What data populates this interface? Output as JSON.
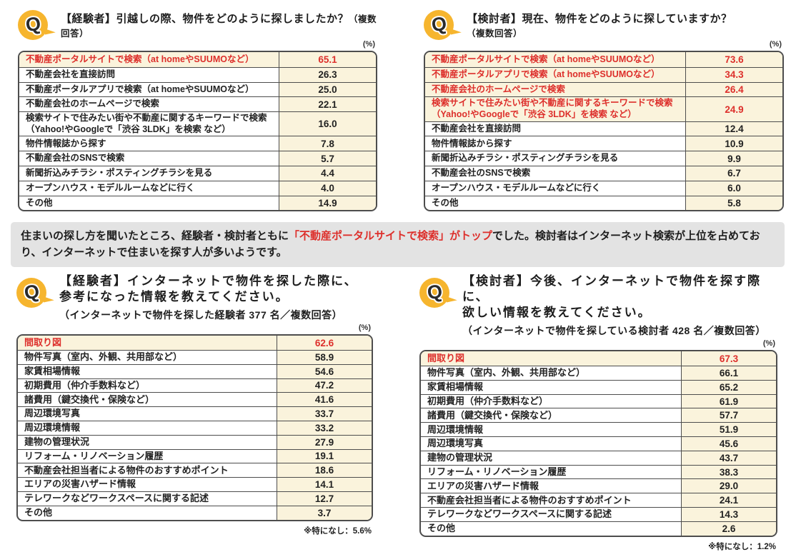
{
  "colors": {
    "accent_yellow": "#f6b52e",
    "accent_red": "#dd2f2b",
    "cream_bg": "#faf3dc",
    "summary_bg": "#e3e3e3",
    "table_border": "#4d4d4d"
  },
  "sections": [
    {
      "title": "【経験者】引越しの際、物件をどのように探しましたか？",
      "title_suffix": "（複数回答）",
      "unit": "(%)",
      "rows": [
        {
          "label": "不動産ポータルサイトで検索（at homeやSUUMOなど）",
          "value": "65.1",
          "highlight": true
        },
        {
          "label": "不動産会社を直接訪問",
          "value": "26.3",
          "highlight": false
        },
        {
          "label": "不動産ポータルアプリで検索（at homeやSUUMOなど）",
          "value": "25.0",
          "highlight": false
        },
        {
          "label": "不動産会社のホームページで検索",
          "value": "22.1",
          "highlight": false
        },
        {
          "label": "検索サイトで住みたい街や不動産に関するキーワードで検索\n（Yahoo!やGoogleで「渋谷 3LDK」を検索 など）",
          "value": "16.0",
          "highlight": false
        },
        {
          "label": "物件情報誌から探す",
          "value": "7.8",
          "highlight": false
        },
        {
          "label": "不動産会社のSNSで検索",
          "value": "5.7",
          "highlight": false
        },
        {
          "label": "新聞折込みチラシ・ポスティングチラシを見る",
          "value": "4.4",
          "highlight": false
        },
        {
          "label": "オープンハウス・モデルルームなどに行く",
          "value": "4.0",
          "highlight": false
        },
        {
          "label": "その他",
          "value": "14.9",
          "highlight": false
        }
      ]
    },
    {
      "title": "【検討者】現在、物件をどのように探していますか？",
      "title_suffix": "（複数回答）",
      "unit": "(%)",
      "rows": [
        {
          "label": "不動産ポータルサイトで検索（at homeやSUUMOなど）",
          "value": "73.6",
          "highlight": true
        },
        {
          "label": "不動産ポータルアプリで検索（at homeやSUUMOなど）",
          "value": "34.3",
          "highlight": true
        },
        {
          "label": "不動産会社のホームページで検索",
          "value": "26.4",
          "highlight": true
        },
        {
          "label": "検索サイトで住みたい街や不動産に関するキーワードで検索\n（Yahoo!やGoogleで「渋谷 3LDK」を検索 など）",
          "value": "24.9",
          "highlight": true
        },
        {
          "label": "不動産会社を直接訪問",
          "value": "12.4",
          "highlight": false
        },
        {
          "label": "物件情報誌から探す",
          "value": "10.9",
          "highlight": false
        },
        {
          "label": "新聞折込みチラシ・ポスティングチラシを見る",
          "value": "9.9",
          "highlight": false
        },
        {
          "label": "不動産会社のSNSで検索",
          "value": "6.7",
          "highlight": false
        },
        {
          "label": "オープンハウス・モデルルームなどに行く",
          "value": "6.0",
          "highlight": false
        },
        {
          "label": "その他",
          "value": "5.8",
          "highlight": false
        }
      ]
    },
    {
      "title_line1": "【経験者】インターネットで物件を探した際に、",
      "title_line2": "参考になった情報を教えてください。",
      "subtitle": "（インターネットで物件を探した経験者 377 名／複数回答）",
      "unit": "(%)",
      "footnote": "※特になし：5.6%",
      "rows": [
        {
          "label": "間取り図",
          "value": "62.6",
          "highlight": true
        },
        {
          "label": "物件写真（室内、外観、共用部など）",
          "value": "58.9",
          "highlight": false
        },
        {
          "label": "家賃相場情報",
          "value": "54.6",
          "highlight": false
        },
        {
          "label": "初期費用（仲介手数料など）",
          "value": "47.2",
          "highlight": false
        },
        {
          "label": "諸費用（鍵交換代・保険など）",
          "value": "41.6",
          "highlight": false
        },
        {
          "label": "周辺環境写真",
          "value": "33.7",
          "highlight": false
        },
        {
          "label": "周辺環境情報",
          "value": "33.2",
          "highlight": false
        },
        {
          "label": "建物の管理状況",
          "value": "27.9",
          "highlight": false
        },
        {
          "label": "リフォーム・リノベーション履歴",
          "value": "19.1",
          "highlight": false
        },
        {
          "label": "不動産会社担当者による物件のおすすめポイント",
          "value": "18.6",
          "highlight": false
        },
        {
          "label": "エリアの災害ハザード情報",
          "value": "14.1",
          "highlight": false
        },
        {
          "label": "テレワークなどワークスペースに関する記述",
          "value": "12.7",
          "highlight": false
        },
        {
          "label": "その他",
          "value": "3.7",
          "highlight": false
        }
      ]
    },
    {
      "title_line1": "【検討者】今後、インターネットで物件を探す際に、",
      "title_line2": "欲しい情報を教えてください。",
      "subtitle": "（インターネットで物件を探している検討者 428 名／複数回答）",
      "unit": "(%)",
      "footnote": "※特になし：1.2%",
      "rows": [
        {
          "label": "間取り図",
          "value": "67.3",
          "highlight": true
        },
        {
          "label": "物件写真（室内、外観、共用部など）",
          "value": "66.1",
          "highlight": false
        },
        {
          "label": "家賃相場情報",
          "value": "65.2",
          "highlight": false
        },
        {
          "label": "初期費用（仲介手数料など）",
          "value": "61.9",
          "highlight": false
        },
        {
          "label": "諸費用（鍵交換代・保険など）",
          "value": "57.7",
          "highlight": false
        },
        {
          "label": "周辺環境情報",
          "value": "51.9",
          "highlight": false
        },
        {
          "label": "周辺環境写真",
          "value": "45.6",
          "highlight": false
        },
        {
          "label": "建物の管理状況",
          "value": "43.7",
          "highlight": false
        },
        {
          "label": "リフォーム・リノベーション履歴",
          "value": "38.3",
          "highlight": false
        },
        {
          "label": "エリアの災害ハザード情報",
          "value": "29.0",
          "highlight": false
        },
        {
          "label": "不動産会社担当者による物件のおすすめポイント",
          "value": "24.1",
          "highlight": false
        },
        {
          "label": "テレワークなどワークスペースに関する記述",
          "value": "14.3",
          "highlight": false
        },
        {
          "label": "その他",
          "value": "2.6",
          "highlight": false
        }
      ]
    }
  ],
  "summary": {
    "text_before": "住まいの探し方を聞いたところ、経験者・検討者ともに",
    "text_highlight": "「不動産ポータルサイトで検索」がトップ",
    "text_after": "でした。検討者はインターネット検索が上位を占めており、インターネットで住まいを探す人が多いようです。"
  },
  "q_icon_letter": "Q"
}
